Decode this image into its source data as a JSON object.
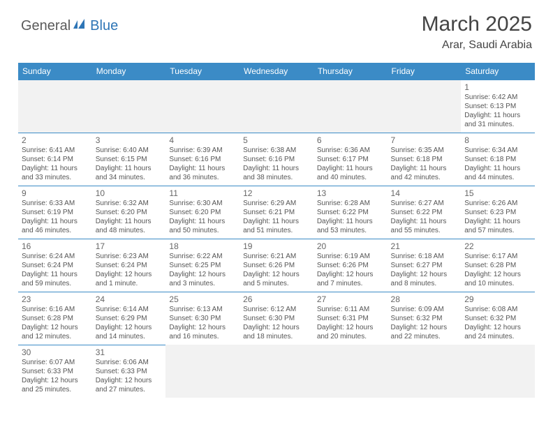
{
  "logo": {
    "general": "General",
    "blue": "Blue"
  },
  "header": {
    "title": "March 2025",
    "location": "Arar, Saudi Arabia"
  },
  "colors": {
    "header_bg": "#3b8bc6",
    "header_text": "#ffffff",
    "border": "#3b8bc6",
    "body_text": "#555555",
    "title_text": "#444444",
    "empty_bg": "#f2f2f2",
    "logo_gray": "#5a5a5a",
    "logo_blue": "#2e75b6"
  },
  "day_names": [
    "Sunday",
    "Monday",
    "Tuesday",
    "Wednesday",
    "Thursday",
    "Friday",
    "Saturday"
  ],
  "weeks": [
    [
      null,
      null,
      null,
      null,
      null,
      null,
      {
        "n": "1",
        "sunrise": "Sunrise: 6:42 AM",
        "sunset": "Sunset: 6:13 PM",
        "day1": "Daylight: 11 hours",
        "day2": "and 31 minutes."
      }
    ],
    [
      {
        "n": "2",
        "sunrise": "Sunrise: 6:41 AM",
        "sunset": "Sunset: 6:14 PM",
        "day1": "Daylight: 11 hours",
        "day2": "and 33 minutes."
      },
      {
        "n": "3",
        "sunrise": "Sunrise: 6:40 AM",
        "sunset": "Sunset: 6:15 PM",
        "day1": "Daylight: 11 hours",
        "day2": "and 34 minutes."
      },
      {
        "n": "4",
        "sunrise": "Sunrise: 6:39 AM",
        "sunset": "Sunset: 6:16 PM",
        "day1": "Daylight: 11 hours",
        "day2": "and 36 minutes."
      },
      {
        "n": "5",
        "sunrise": "Sunrise: 6:38 AM",
        "sunset": "Sunset: 6:16 PM",
        "day1": "Daylight: 11 hours",
        "day2": "and 38 minutes."
      },
      {
        "n": "6",
        "sunrise": "Sunrise: 6:36 AM",
        "sunset": "Sunset: 6:17 PM",
        "day1": "Daylight: 11 hours",
        "day2": "and 40 minutes."
      },
      {
        "n": "7",
        "sunrise": "Sunrise: 6:35 AM",
        "sunset": "Sunset: 6:18 PM",
        "day1": "Daylight: 11 hours",
        "day2": "and 42 minutes."
      },
      {
        "n": "8",
        "sunrise": "Sunrise: 6:34 AM",
        "sunset": "Sunset: 6:18 PM",
        "day1": "Daylight: 11 hours",
        "day2": "and 44 minutes."
      }
    ],
    [
      {
        "n": "9",
        "sunrise": "Sunrise: 6:33 AM",
        "sunset": "Sunset: 6:19 PM",
        "day1": "Daylight: 11 hours",
        "day2": "and 46 minutes."
      },
      {
        "n": "10",
        "sunrise": "Sunrise: 6:32 AM",
        "sunset": "Sunset: 6:20 PM",
        "day1": "Daylight: 11 hours",
        "day2": "and 48 minutes."
      },
      {
        "n": "11",
        "sunrise": "Sunrise: 6:30 AM",
        "sunset": "Sunset: 6:20 PM",
        "day1": "Daylight: 11 hours",
        "day2": "and 50 minutes."
      },
      {
        "n": "12",
        "sunrise": "Sunrise: 6:29 AM",
        "sunset": "Sunset: 6:21 PM",
        "day1": "Daylight: 11 hours",
        "day2": "and 51 minutes."
      },
      {
        "n": "13",
        "sunrise": "Sunrise: 6:28 AM",
        "sunset": "Sunset: 6:22 PM",
        "day1": "Daylight: 11 hours",
        "day2": "and 53 minutes."
      },
      {
        "n": "14",
        "sunrise": "Sunrise: 6:27 AM",
        "sunset": "Sunset: 6:22 PM",
        "day1": "Daylight: 11 hours",
        "day2": "and 55 minutes."
      },
      {
        "n": "15",
        "sunrise": "Sunrise: 6:26 AM",
        "sunset": "Sunset: 6:23 PM",
        "day1": "Daylight: 11 hours",
        "day2": "and 57 minutes."
      }
    ],
    [
      {
        "n": "16",
        "sunrise": "Sunrise: 6:24 AM",
        "sunset": "Sunset: 6:24 PM",
        "day1": "Daylight: 11 hours",
        "day2": "and 59 minutes."
      },
      {
        "n": "17",
        "sunrise": "Sunrise: 6:23 AM",
        "sunset": "Sunset: 6:24 PM",
        "day1": "Daylight: 12 hours",
        "day2": "and 1 minute."
      },
      {
        "n": "18",
        "sunrise": "Sunrise: 6:22 AM",
        "sunset": "Sunset: 6:25 PM",
        "day1": "Daylight: 12 hours",
        "day2": "and 3 minutes."
      },
      {
        "n": "19",
        "sunrise": "Sunrise: 6:21 AM",
        "sunset": "Sunset: 6:26 PM",
        "day1": "Daylight: 12 hours",
        "day2": "and 5 minutes."
      },
      {
        "n": "20",
        "sunrise": "Sunrise: 6:19 AM",
        "sunset": "Sunset: 6:26 PM",
        "day1": "Daylight: 12 hours",
        "day2": "and 7 minutes."
      },
      {
        "n": "21",
        "sunrise": "Sunrise: 6:18 AM",
        "sunset": "Sunset: 6:27 PM",
        "day1": "Daylight: 12 hours",
        "day2": "and 8 minutes."
      },
      {
        "n": "22",
        "sunrise": "Sunrise: 6:17 AM",
        "sunset": "Sunset: 6:28 PM",
        "day1": "Daylight: 12 hours",
        "day2": "and 10 minutes."
      }
    ],
    [
      {
        "n": "23",
        "sunrise": "Sunrise: 6:16 AM",
        "sunset": "Sunset: 6:28 PM",
        "day1": "Daylight: 12 hours",
        "day2": "and 12 minutes."
      },
      {
        "n": "24",
        "sunrise": "Sunrise: 6:14 AM",
        "sunset": "Sunset: 6:29 PM",
        "day1": "Daylight: 12 hours",
        "day2": "and 14 minutes."
      },
      {
        "n": "25",
        "sunrise": "Sunrise: 6:13 AM",
        "sunset": "Sunset: 6:30 PM",
        "day1": "Daylight: 12 hours",
        "day2": "and 16 minutes."
      },
      {
        "n": "26",
        "sunrise": "Sunrise: 6:12 AM",
        "sunset": "Sunset: 6:30 PM",
        "day1": "Daylight: 12 hours",
        "day2": "and 18 minutes."
      },
      {
        "n": "27",
        "sunrise": "Sunrise: 6:11 AM",
        "sunset": "Sunset: 6:31 PM",
        "day1": "Daylight: 12 hours",
        "day2": "and 20 minutes."
      },
      {
        "n": "28",
        "sunrise": "Sunrise: 6:09 AM",
        "sunset": "Sunset: 6:32 PM",
        "day1": "Daylight: 12 hours",
        "day2": "and 22 minutes."
      },
      {
        "n": "29",
        "sunrise": "Sunrise: 6:08 AM",
        "sunset": "Sunset: 6:32 PM",
        "day1": "Daylight: 12 hours",
        "day2": "and 24 minutes."
      }
    ],
    [
      {
        "n": "30",
        "sunrise": "Sunrise: 6:07 AM",
        "sunset": "Sunset: 6:33 PM",
        "day1": "Daylight: 12 hours",
        "day2": "and 25 minutes."
      },
      {
        "n": "31",
        "sunrise": "Sunrise: 6:06 AM",
        "sunset": "Sunset: 6:33 PM",
        "day1": "Daylight: 12 hours",
        "day2": "and 27 minutes."
      },
      null,
      null,
      null,
      null,
      null
    ]
  ]
}
